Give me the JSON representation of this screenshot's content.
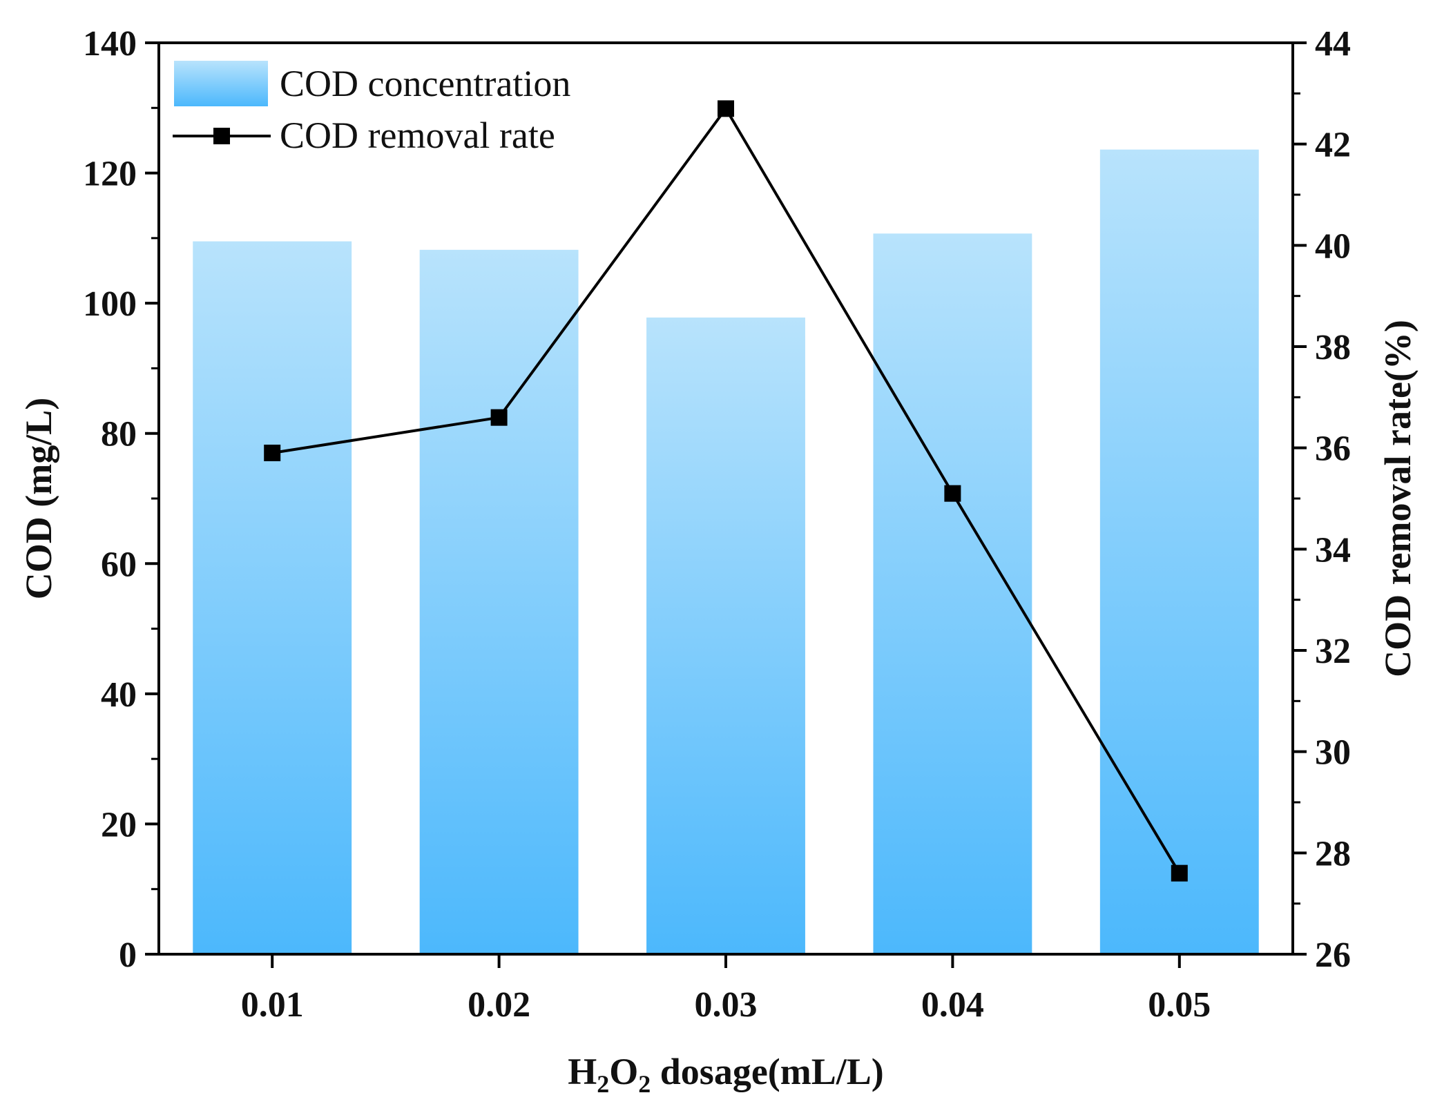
{
  "chart_data": {
    "type": "bar",
    "categories": [
      "0.01",
      "0.02",
      "0.03",
      "0.04",
      "0.05"
    ],
    "series": [
      {
        "name": "COD concentration",
        "type": "bar",
        "axis": "left",
        "values": [
          109.5,
          108.2,
          97.8,
          110.7,
          123.6
        ],
        "color_top": "#b8e3fc",
        "color_bottom": "#4cb8fc"
      },
      {
        "name": "COD removal rate",
        "type": "line",
        "axis": "right",
        "marker": "square",
        "values": [
          35.9,
          36.6,
          42.7,
          35.1,
          27.6
        ],
        "color": "#000000"
      }
    ],
    "xlabel_main": "H",
    "xlabel_sub1": "2",
    "xlabel_mid": "O",
    "xlabel_sub2": "2",
    "xlabel_rest": " dosage(mL/L)",
    "ylabel": "COD (mg/L)",
    "y2label": "COD removal rate(%)",
    "ylim": [
      0,
      140
    ],
    "y2lim": [
      26,
      44
    ],
    "yticks": [
      "0",
      "20",
      "40",
      "60",
      "80",
      "100",
      "120",
      "140"
    ],
    "y2ticks": [
      "26",
      "28",
      "30",
      "32",
      "34",
      "36",
      "38",
      "40",
      "42",
      "44"
    ],
    "legend_position": "top-left"
  }
}
